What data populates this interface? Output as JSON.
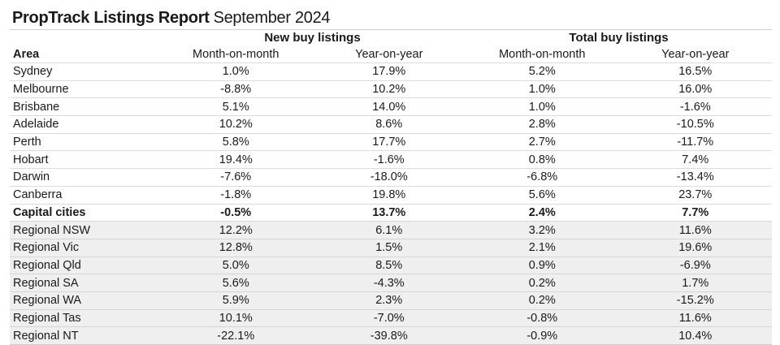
{
  "title": {
    "bold": "PropTrack Listings Report",
    "light": "September 2024"
  },
  "groups": [
    "New buy listings",
    "Total  buy listings"
  ],
  "columns": [
    "Area",
    "Month-on-month",
    "Year-on-year",
    "Month-on-month",
    "Year-on-year"
  ],
  "rows": [
    {
      "area": "Sydney",
      "values": [
        "1.0%",
        "17.9%",
        "5.2%",
        "16.5%"
      ],
      "bold": false,
      "regional": false
    },
    {
      "area": "Melbourne",
      "values": [
        "-8.8%",
        "10.2%",
        "1.0%",
        "16.0%"
      ],
      "bold": false,
      "regional": false
    },
    {
      "area": "Brisbane",
      "values": [
        "5.1%",
        "14.0%",
        "1.0%",
        "-1.6%"
      ],
      "bold": false,
      "regional": false
    },
    {
      "area": "Adelaide",
      "values": [
        "10.2%",
        "8.6%",
        "2.8%",
        "-10.5%"
      ],
      "bold": false,
      "regional": false
    },
    {
      "area": "Perth",
      "values": [
        "5.8%",
        "17.7%",
        "2.7%",
        "-11.7%"
      ],
      "bold": false,
      "regional": false
    },
    {
      "area": "Hobart",
      "values": [
        "19.4%",
        "-1.6%",
        "0.8%",
        "7.4%"
      ],
      "bold": false,
      "regional": false
    },
    {
      "area": "Darwin",
      "values": [
        "-7.6%",
        "-18.0%",
        "-6.8%",
        "-13.4%"
      ],
      "bold": false,
      "regional": false
    },
    {
      "area": "Canberra",
      "values": [
        "-1.8%",
        "19.8%",
        "5.6%",
        "23.7%"
      ],
      "bold": false,
      "regional": false
    },
    {
      "area": "Capital cities",
      "values": [
        "-0.5%",
        "13.7%",
        "2.4%",
        "7.7%"
      ],
      "bold": true,
      "regional": false
    },
    {
      "area": "Regional NSW",
      "values": [
        "12.2%",
        "6.1%",
        "3.2%",
        "11.6%"
      ],
      "bold": false,
      "regional": true
    },
    {
      "area": "Regional Vic",
      "values": [
        "12.8%",
        "1.5%",
        "2.1%",
        "19.6%"
      ],
      "bold": false,
      "regional": true
    },
    {
      "area": "Regional Qld",
      "values": [
        "5.0%",
        "8.5%",
        "0.9%",
        "-6.9%"
      ],
      "bold": false,
      "regional": true
    },
    {
      "area": "Regional SA",
      "values": [
        "5.6%",
        "-4.3%",
        "0.2%",
        "1.7%"
      ],
      "bold": false,
      "regional": true
    },
    {
      "area": "Regional WA",
      "values": [
        "5.9%",
        "2.3%",
        "0.2%",
        "-15.2%"
      ],
      "bold": false,
      "regional": true
    },
    {
      "area": "Regional Tas",
      "values": [
        "10.1%",
        "-7.0%",
        "-0.8%",
        "11.6%"
      ],
      "bold": false,
      "regional": true
    },
    {
      "area": "Regional NT",
      "values": [
        "-22.1%",
        "-39.8%",
        "-0.9%",
        "10.4%"
      ],
      "bold": false,
      "regional": true
    }
  ]
}
